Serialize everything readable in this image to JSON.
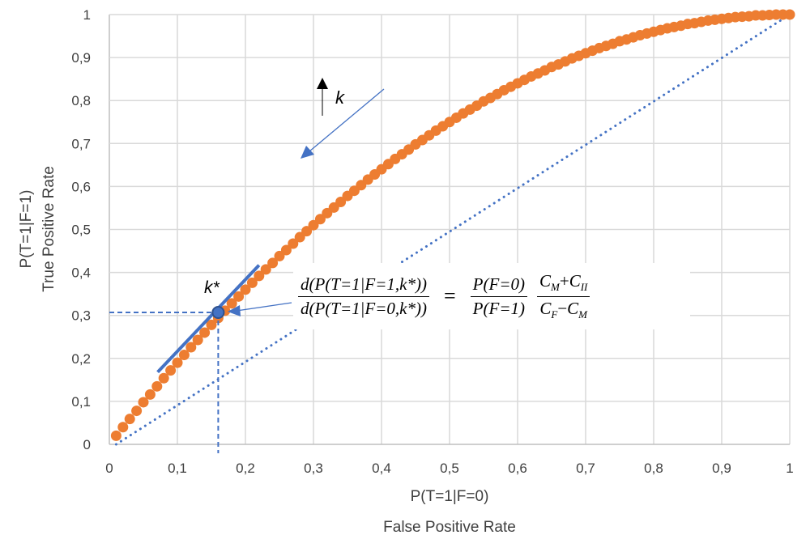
{
  "chart_data": {
    "type": "scatter",
    "xlabel": [
      "P(T=1|F=0)",
      "False Positive Rate"
    ],
    "ylabel": [
      "P(T=1|F=1)",
      "True Positive Rate"
    ],
    "xlim": [
      0,
      1
    ],
    "ylim": [
      0,
      1
    ],
    "grid": true,
    "x_ticks": [
      "0",
      "0,1",
      "0,2",
      "0,3",
      "0,4",
      "0,5",
      "0,6",
      "0,7",
      "0,8",
      "0,9",
      "1"
    ],
    "y_ticks": [
      "0",
      "0,1",
      "0,2",
      "0,3",
      "0,4",
      "0,5",
      "0,6",
      "0,7",
      "0,8",
      "0,9",
      "1"
    ],
    "colors": {
      "curve": "#ED7D31",
      "annotation": "#4472C4",
      "diagonal": "#4472C4"
    },
    "series": [
      {
        "style": "orange markers",
        "x": [
          0.01,
          0.02,
          0.03,
          0.04,
          0.05,
          0.06,
          0.07,
          0.08,
          0.09,
          0.1,
          0.11,
          0.12,
          0.13,
          0.14,
          0.15,
          0.16,
          0.17,
          0.18,
          0.19,
          0.2,
          0.21,
          0.22,
          0.23,
          0.24,
          0.25,
          0.26,
          0.27,
          0.28,
          0.29,
          0.3,
          0.31,
          0.32,
          0.33,
          0.34,
          0.35,
          0.36,
          0.37,
          0.38,
          0.39,
          0.4,
          0.41,
          0.42,
          0.43,
          0.44,
          0.45,
          0.46,
          0.47,
          0.48,
          0.49,
          0.5,
          0.51,
          0.52,
          0.53,
          0.54,
          0.55,
          0.56,
          0.57,
          0.58,
          0.59,
          0.6,
          0.61,
          0.62,
          0.63,
          0.64,
          0.65,
          0.66,
          0.67,
          0.68,
          0.69,
          0.7,
          0.71,
          0.72,
          0.73,
          0.74,
          0.75,
          0.76,
          0.77,
          0.78,
          0.79,
          0.8,
          0.81,
          0.82,
          0.83,
          0.84,
          0.85,
          0.86,
          0.87,
          0.88,
          0.89,
          0.9,
          0.91,
          0.92,
          0.93,
          0.94,
          0.95,
          0.96,
          0.97,
          0.98,
          0.99,
          1.0
        ],
        "y": [
          0.02,
          0.04,
          0.059,
          0.078,
          0.098,
          0.116,
          0.135,
          0.154,
          0.172,
          0.19,
          0.208,
          0.226,
          0.243,
          0.26,
          0.278,
          0.294,
          0.311,
          0.328,
          0.344,
          0.36,
          0.376,
          0.392,
          0.407,
          0.422,
          0.438,
          0.452,
          0.467,
          0.482,
          0.496,
          0.51,
          0.524,
          0.538,
          0.551,
          0.564,
          0.578,
          0.59,
          0.603,
          0.616,
          0.628,
          0.64,
          0.652,
          0.664,
          0.675,
          0.686,
          0.698,
          0.708,
          0.719,
          0.73,
          0.74,
          0.75,
          0.76,
          0.77,
          0.779,
          0.788,
          0.798,
          0.806,
          0.815,
          0.824,
          0.832,
          0.84,
          0.848,
          0.856,
          0.863,
          0.87,
          0.878,
          0.884,
          0.891,
          0.898,
          0.904,
          0.91,
          0.916,
          0.922,
          0.927,
          0.932,
          0.938,
          0.942,
          0.947,
          0.952,
          0.956,
          0.96,
          0.964,
          0.968,
          0.971,
          0.974,
          0.978,
          0.98,
          0.983,
          0.986,
          0.988,
          0.99,
          0.992,
          0.994,
          0.995,
          0.996,
          0.998,
          0.998,
          0.999,
          1.0,
          1.0,
          1.0
        ]
      },
      {
        "style": "blue dotted line",
        "x": [
          0.01,
          1.0
        ],
        "y": [
          0.0,
          1.0
        ]
      }
    ],
    "annotations": {
      "k_star": {
        "label": "k*",
        "x": 0.16,
        "y": 0.307
      },
      "tangent": {
        "x": [
          0.071,
          0.22
        ],
        "y": [
          0.168,
          0.417
        ]
      },
      "k_arrow_label": "k",
      "formula": {
        "lhs_num": "d(P(T=1|F=1,k*))",
        "lhs_den": "d(P(T=1|F=0,k*))",
        "equals": "=",
        "r1_num": "P(F=0)",
        "r1_den": "P(F=1)",
        "r2_num_a": "C",
        "r2_num_a_sub": "M",
        "r2_num_op": "+",
        "r2_num_b": "C",
        "r2_num_b_sub": "II",
        "r2_den_a": "C",
        "r2_den_a_sub": "F",
        "r2_den_op": "−",
        "r2_den_b": "C",
        "r2_den_b_sub": "M"
      }
    }
  }
}
